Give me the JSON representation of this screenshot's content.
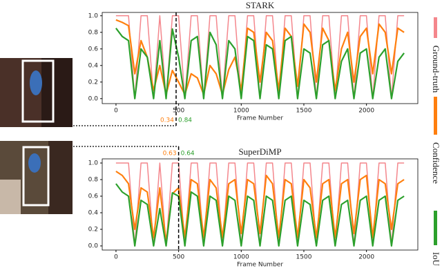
{
  "chart_data": [
    {
      "type": "line",
      "title": "STARK",
      "x_label": "Frame Number",
      "x": [
        0,
        50,
        100,
        150,
        200,
        250,
        300,
        350,
        400,
        450,
        500,
        550,
        600,
        650,
        700,
        750,
        800,
        850,
        900,
        950,
        1000,
        1050,
        1100,
        1150,
        1200,
        1250,
        1300,
        1350,
        1400,
        1450,
        1500,
        1550,
        1600,
        1650,
        1700,
        1750,
        1800,
        1850,
        1900,
        1950,
        2000,
        2050,
        2100,
        2150,
        2200,
        2250,
        2300
      ],
      "xlim": [
        -110,
        2410
      ],
      "xticks": [
        0,
        500,
        1000,
        1500,
        2000
      ],
      "ylim": [
        -0.06,
        1.04
      ],
      "yticks": [
        {
          "value": 0,
          "label": "0.0"
        },
        0.2,
        0.4,
        0.6,
        0.8,
        {
          "value": 1,
          "label": "1.0"
        }
      ],
      "highlight_frame": 480,
      "annotations": [
        {
          "text": "0.34",
          "color": "#ff7f0e"
        },
        {
          "text": "0.84",
          "color": "#2ca02c"
        }
      ],
      "series": [
        {
          "name": "Ground-truth",
          "color": "#f4868c",
          "values": [
            1,
            1,
            1,
            0,
            1,
            1,
            0,
            1,
            0,
            1,
            1,
            0,
            1,
            1,
            0,
            1,
            1,
            0,
            1,
            1,
            0,
            1,
            1,
            0,
            1,
            1,
            0,
            1,
            1,
            0,
            1,
            1,
            0,
            1,
            1,
            0,
            1,
            1,
            0,
            1,
            1,
            0,
            1,
            1,
            0,
            1,
            1
          ]
        },
        {
          "name": "Confidence",
          "color": "#ff7f0e",
          "values": [
            0.95,
            0.92,
            0.88,
            0.3,
            0.7,
            0.5,
            0.1,
            0.4,
            0.05,
            0.34,
            0.2,
            0.05,
            0.3,
            0.25,
            0.05,
            0.4,
            0.3,
            0.05,
            0.35,
            0.5,
            0.1,
            0.85,
            0.8,
            0.2,
            0.8,
            0.7,
            0.1,
            0.85,
            0.75,
            0.15,
            0.9,
            0.8,
            0.2,
            0.85,
            0.7,
            0.1,
            0.6,
            0.8,
            0.2,
            0.75,
            0.85,
            0.3,
            0.9,
            0.8,
            0.3,
            0.85,
            0.8
          ]
        },
        {
          "name": "IoU",
          "color": "#2ca02c",
          "values": [
            0.85,
            0.75,
            0.7,
            0,
            0.6,
            0.5,
            0,
            0.7,
            0,
            0.84,
            0.5,
            0,
            0.7,
            0.75,
            0,
            0.8,
            0.65,
            0,
            0.7,
            0.6,
            0,
            0.75,
            0.7,
            0,
            0.65,
            0.6,
            0,
            0.7,
            0.75,
            0,
            0.6,
            0.55,
            0,
            0.65,
            0.7,
            0,
            0.45,
            0.6,
            0,
            0.55,
            0.6,
            0,
            0.5,
            0.6,
            0,
            0.45,
            0.55
          ]
        }
      ]
    },
    {
      "type": "line",
      "title": "SuperDiMP",
      "x_label": "Frame Number",
      "x": [
        0,
        50,
        100,
        150,
        200,
        250,
        300,
        350,
        400,
        450,
        500,
        550,
        600,
        650,
        700,
        750,
        800,
        850,
        900,
        950,
        1000,
        1050,
        1100,
        1150,
        1200,
        1250,
        1300,
        1350,
        1400,
        1450,
        1500,
        1550,
        1600,
        1650,
        1700,
        1750,
        1800,
        1850,
        1900,
        1950,
        2000,
        2050,
        2100,
        2150,
        2200,
        2250,
        2300
      ],
      "xlim": [
        -110,
        2410
      ],
      "xticks": [
        0,
        500,
        1000,
        1500,
        2000
      ],
      "ylim": [
        -0.05,
        1.05
      ],
      "yticks": [
        {
          "value": 0,
          "label": "0.0"
        },
        0.2,
        0.4,
        0.6,
        0.8,
        {
          "value": 1,
          "label": "1.0"
        }
      ],
      "highlight_frame": 500,
      "annotations": [
        {
          "text": "0.63",
          "color": "#ff7f0e"
        },
        {
          "text": "0.64",
          "color": "#2ca02c"
        }
      ],
      "series": [
        {
          "color": "#f4868c",
          "values": [
            1,
            1,
            1,
            0,
            1,
            1,
            0,
            1,
            0,
            1,
            1,
            0,
            1,
            1,
            0,
            1,
            1,
            0,
            1,
            1,
            0,
            1,
            1,
            0,
            1,
            1,
            0,
            1,
            1,
            0,
            1,
            1,
            0,
            1,
            1,
            0,
            1,
            1,
            0,
            1,
            1,
            0,
            1,
            1,
            0,
            1,
            1
          ]
        },
        {
          "color": "#ff7f0e",
          "values": [
            0.9,
            0.85,
            0.75,
            0.2,
            0.7,
            0.65,
            0.1,
            0.7,
            0.05,
            0.63,
            0.7,
            0.1,
            0.8,
            0.75,
            0.1,
            0.8,
            0.7,
            0.1,
            0.75,
            0.8,
            0.15,
            0.8,
            0.75,
            0.15,
            0.85,
            0.75,
            0.1,
            0.8,
            0.75,
            0.1,
            0.8,
            0.7,
            0.1,
            0.75,
            0.8,
            0.1,
            0.75,
            0.8,
            0.15,
            0.8,
            0.85,
            0.1,
            0.8,
            0.75,
            0.2,
            0.75,
            0.8
          ]
        },
        {
          "color": "#2ca02c",
          "values": [
            0.75,
            0.65,
            0.6,
            0,
            0.55,
            0.5,
            0,
            0.45,
            0,
            0.64,
            0.6,
            0,
            0.65,
            0.6,
            0,
            0.6,
            0.55,
            0,
            0.6,
            0.55,
            0,
            0.6,
            0.55,
            0,
            0.6,
            0.55,
            0,
            0.55,
            0.6,
            0,
            0.55,
            0.5,
            0,
            0.55,
            0.6,
            0,
            0.5,
            0.55,
            0,
            0.55,
            0.6,
            0,
            0.55,
            0.6,
            0,
            0.55,
            0.6
          ]
        }
      ]
    }
  ]
}
